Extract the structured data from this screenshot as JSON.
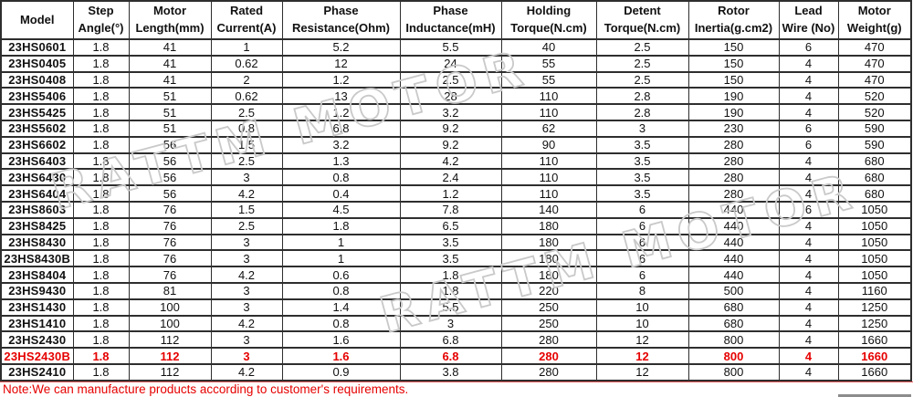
{
  "table": {
    "columns": [
      {
        "line1": "Model",
        "line2": ""
      },
      {
        "line1": "Step",
        "line2": "Angle(°)"
      },
      {
        "line1": "Motor",
        "line2": "Length(mm)"
      },
      {
        "line1": "Rated",
        "line2": "Current(A)"
      },
      {
        "line1": "Phase",
        "line2": "Resistance(Ohm)"
      },
      {
        "line1": "Phase",
        "line2": "Inductance(mH)"
      },
      {
        "line1": "Holding",
        "line2": "Torque(N.cm)"
      },
      {
        "line1": "Detent",
        "line2": "Torque(N.cm)"
      },
      {
        "line1": "Rotor",
        "line2": "Inertia(g.cm2)"
      },
      {
        "line1": "Lead",
        "line2": "Wire (No)"
      },
      {
        "line1": "Motor",
        "line2": "Weight(g)"
      }
    ],
    "highlight_row_index": 19,
    "rows": [
      [
        "23HS0601",
        "1.8",
        "41",
        "1",
        "5.2",
        "5.5",
        "40",
        "2.5",
        "150",
        "6",
        "470"
      ],
      [
        "23HS0405",
        "1.8",
        "41",
        "0.62",
        "12",
        "24",
        "55",
        "2.5",
        "150",
        "4",
        "470"
      ],
      [
        "23HS0408",
        "1.8",
        "41",
        "2",
        "1.2",
        "2.5",
        "55",
        "2.5",
        "150",
        "4",
        "470"
      ],
      [
        "23HS5406",
        "1.8",
        "51",
        "0.62",
        "13",
        "28",
        "110",
        "2.8",
        "190",
        "4",
        "520"
      ],
      [
        "23HS5425",
        "1.8",
        "51",
        "2.5",
        "1.2",
        "3.2",
        "110",
        "2.8",
        "190",
        "4",
        "520"
      ],
      [
        "23HS5602",
        "1.8",
        "51",
        "0.8",
        "6.8",
        "9.2",
        "62",
        "3",
        "230",
        "6",
        "590"
      ],
      [
        "23HS6602",
        "1.8",
        "56",
        "1.5",
        "3.2",
        "9.2",
        "90",
        "3.5",
        "280",
        "6",
        "590"
      ],
      [
        "23HS6403",
        "1.8",
        "56",
        "2.5",
        "1.3",
        "4.2",
        "110",
        "3.5",
        "280",
        "4",
        "680"
      ],
      [
        "23HS6430",
        "1.8",
        "56",
        "3",
        "0.8",
        "2.4",
        "110",
        "3.5",
        "280",
        "4",
        "680"
      ],
      [
        "23HS6404",
        "1.8",
        "56",
        "4.2",
        "0.4",
        "1.2",
        "110",
        "3.5",
        "280",
        "4",
        "680"
      ],
      [
        "23HS8603",
        "1.8",
        "76",
        "1.5",
        "4.5",
        "7.8",
        "140",
        "6",
        "440",
        "6",
        "1050"
      ],
      [
        "23HS8425",
        "1.8",
        "76",
        "2.5",
        "1.8",
        "6.5",
        "180",
        "6",
        "440",
        "4",
        "1050"
      ],
      [
        "23HS8430",
        "1.8",
        "76",
        "3",
        "1",
        "3.5",
        "180",
        "6",
        "440",
        "4",
        "1050"
      ],
      [
        "23HS8430B",
        "1.8",
        "76",
        "3",
        "1",
        "3.5",
        "180",
        "6",
        "440",
        "4",
        "1050"
      ],
      [
        "23HS8404",
        "1.8",
        "76",
        "4.2",
        "0.6",
        "1.8",
        "180",
        "6",
        "440",
        "4",
        "1050"
      ],
      [
        "23HS9430",
        "1.8",
        "81",
        "3",
        "0.8",
        "1.8",
        "220",
        "8",
        "500",
        "4",
        "1160"
      ],
      [
        "23HS1430",
        "1.8",
        "100",
        "3",
        "1.4",
        "5.5",
        "250",
        "10",
        "680",
        "4",
        "1250"
      ],
      [
        "23HS1410",
        "1.8",
        "100",
        "4.2",
        "0.8",
        "3",
        "250",
        "10",
        "680",
        "4",
        "1250"
      ],
      [
        "23HS2430",
        "1.8",
        "112",
        "3",
        "1.6",
        "6.8",
        "280",
        "12",
        "800",
        "4",
        "1660"
      ],
      [
        "23HS2430B",
        "1.8",
        "112",
        "3",
        "1.6",
        "6.8",
        "280",
        "12",
        "800",
        "4",
        "1660"
      ],
      [
        "23HS2410",
        "1.8",
        "112",
        "4.2",
        "0.9",
        "3.8",
        "280",
        "12",
        "800",
        "4",
        "1660"
      ]
    ]
  },
  "note": "Note:We can manufacture products according to customer's requirements.",
  "watermark": {
    "text": "RATTM MOTOR"
  },
  "colors": {
    "highlight_red": "#e60000",
    "note_red": "#e60000",
    "grid": "#2e2e2e",
    "watermark_gray": "#c9c9c9"
  }
}
